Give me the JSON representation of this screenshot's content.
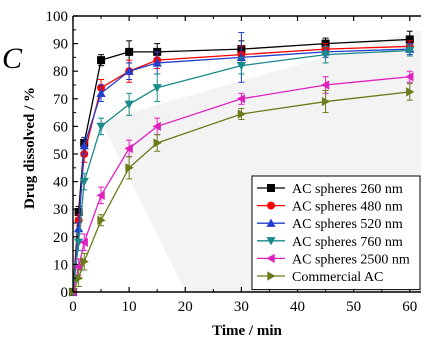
{
  "panel_label": "C",
  "chart_data": {
    "type": "line",
    "xlabel": "Time / min",
    "ylabel": "Drug dissolved / %",
    "xlim": [
      0,
      62
    ],
    "ylim": [
      0,
      100
    ],
    "xticks": [
      0,
      10,
      20,
      30,
      40,
      50,
      60
    ],
    "yticks": [
      0,
      10,
      20,
      30,
      40,
      50,
      60,
      70,
      80,
      90,
      100
    ],
    "grid": false,
    "legend_position": "lower-right",
    "x": [
      0,
      1,
      2,
      5,
      10,
      15,
      30,
      45,
      60
    ],
    "series": [
      {
        "name": "AC spheres 260 nm",
        "color": "#000000",
        "marker": "square",
        "values": [
          0,
          29,
          54,
          84,
          87,
          87,
          88,
          90,
          91.5
        ],
        "errors": [
          0,
          2,
          2,
          2,
          4,
          3,
          3,
          2,
          3
        ]
      },
      {
        "name": "AC spheres 480 nm",
        "color": "#ff0000",
        "marker": "circle",
        "values": [
          0,
          26,
          50,
          74,
          80,
          84,
          86,
          88,
          89
        ],
        "errors": [
          0,
          2,
          3,
          3,
          4,
          3,
          3,
          2,
          2
        ]
      },
      {
        "name": "AC spheres 520 nm",
        "color": "#1f3fcc",
        "marker": "triangle-up",
        "values": [
          0,
          23,
          53,
          72,
          80,
          83,
          85,
          87,
          88
        ],
        "errors": [
          0,
          2,
          3,
          3,
          3,
          4,
          9,
          2,
          2
        ]
      },
      {
        "name": "AC spheres 760 nm",
        "color": "#1a8a8a",
        "marker": "triangle-down",
        "values": [
          0,
          18,
          40,
          60,
          68,
          74,
          82,
          86,
          87.5
        ],
        "errors": [
          0,
          3,
          3,
          3,
          4,
          5,
          3,
          3,
          2
        ]
      },
      {
        "name": "AC spheres 2500 nm",
        "color": "#e020c0",
        "marker": "triangle-left",
        "values": [
          0,
          9,
          18,
          35,
          52,
          60,
          70,
          75,
          78
        ],
        "errors": [
          0,
          3,
          3,
          3,
          3,
          3,
          2,
          3,
          2
        ]
      },
      {
        "name": "Commercial AC",
        "color": "#6b7a1a",
        "marker": "triangle-right",
        "values": [
          0,
          5,
          11,
          26,
          45,
          54,
          64.5,
          69,
          72.5
        ],
        "errors": [
          0,
          3,
          3,
          2,
          4,
          3,
          2,
          4,
          3
        ]
      }
    ]
  }
}
